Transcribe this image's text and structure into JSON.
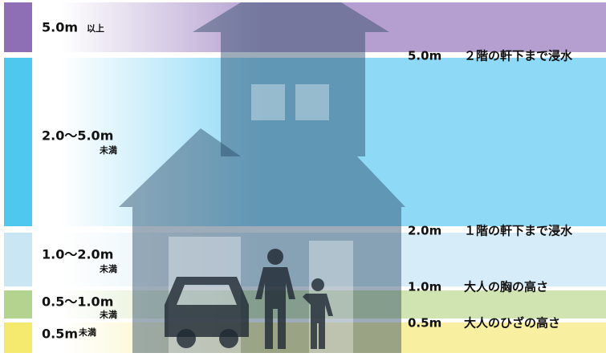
{
  "levels": [
    {
      "range": "5.0m",
      "note": "以上"
    },
    {
      "range": "2.0～5.0m",
      "note": "未満"
    },
    {
      "range": "1.0～2.0m",
      "note": "未満"
    },
    {
      "range": "0.5～1.0m",
      "note": "未満"
    },
    {
      "range": "0.5m",
      "note": "未満"
    }
  ],
  "markers": [
    {
      "depth": "5.0m",
      "description": "２階の軒下まで浸水"
    },
    {
      "depth": "2.0m",
      "description": "１階の軒下まで浸水"
    },
    {
      "depth": "1.0m",
      "description": "大人の胸の高さ"
    },
    {
      "depth": "0.5m",
      "description": "大人のひざの高さ"
    }
  ]
}
